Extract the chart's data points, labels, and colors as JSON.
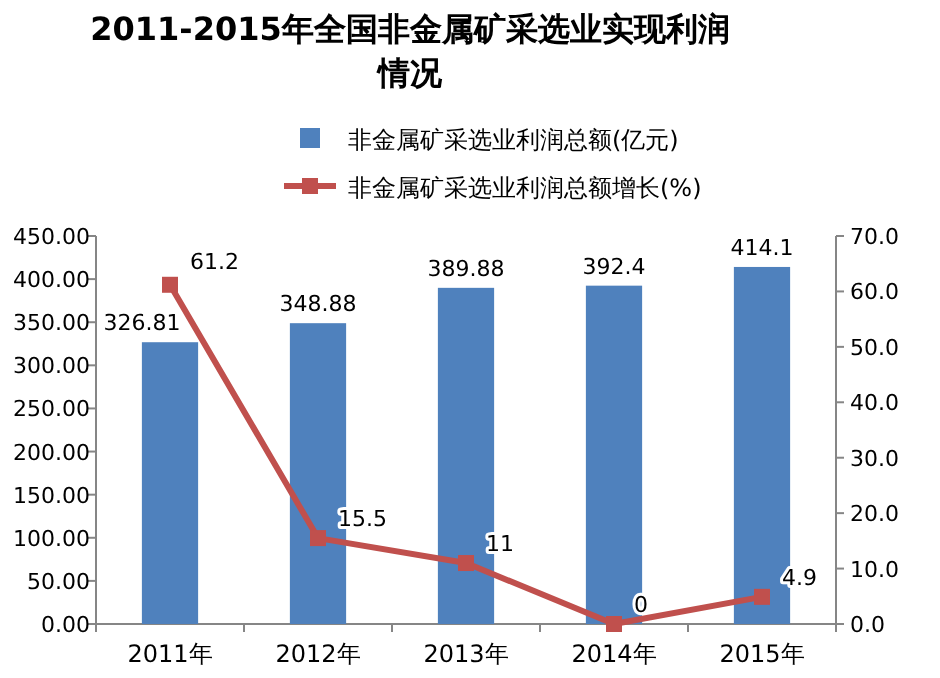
{
  "chart_data": {
    "type": "bar",
    "title": "2011-2015年全国非金属矿采选业实现利润情况",
    "categories": [
      "2011年",
      "2012年",
      "2013年",
      "2014年",
      "2015年"
    ],
    "series": [
      {
        "name": "非金属矿采选业利润总额(亿元)",
        "color": "#4f81bd",
        "values": [
          326.81,
          348.88,
          389.88,
          392.4,
          414.1
        ]
      },
      {
        "name": "非金属矿采选业利润总额增长(%)",
        "type": "line",
        "axis": "y2",
        "color": "#c0504d",
        "marker": "square",
        "values": [
          61.2,
          15.5,
          11,
          0,
          4.9
        ]
      }
    ],
    "ylim": [
      0,
      450
    ],
    "yticks": [
      {
        "value": 0,
        "label": "0.00"
      },
      {
        "value": 50,
        "label": "50.00"
      },
      {
        "value": 100,
        "label": "100.00"
      },
      {
        "value": 150,
        "label": "150.00"
      },
      {
        "value": 200,
        "label": "200.00"
      },
      {
        "value": 250,
        "label": "250.00"
      },
      {
        "value": 300,
        "label": "300.00"
      },
      {
        "value": 350,
        "label": "350.00"
      },
      {
        "value": 400,
        "label": "400.00"
      },
      {
        "value": 450,
        "label": "450.00"
      }
    ],
    "y2lim": [
      0,
      70
    ],
    "y2ticks": [
      {
        "value": 0,
        "label": "0.0"
      },
      {
        "value": 10,
        "label": "10.0"
      },
      {
        "value": 20,
        "label": "20.0"
      },
      {
        "value": 30,
        "label": "30.0"
      },
      {
        "value": 40,
        "label": "40.0"
      },
      {
        "value": 50,
        "label": "50.0"
      },
      {
        "value": 60,
        "label": "60.0"
      },
      {
        "value": 70,
        "label": "70.0"
      }
    ],
    "data_labels": true,
    "legend": "top",
    "grid": false
  }
}
